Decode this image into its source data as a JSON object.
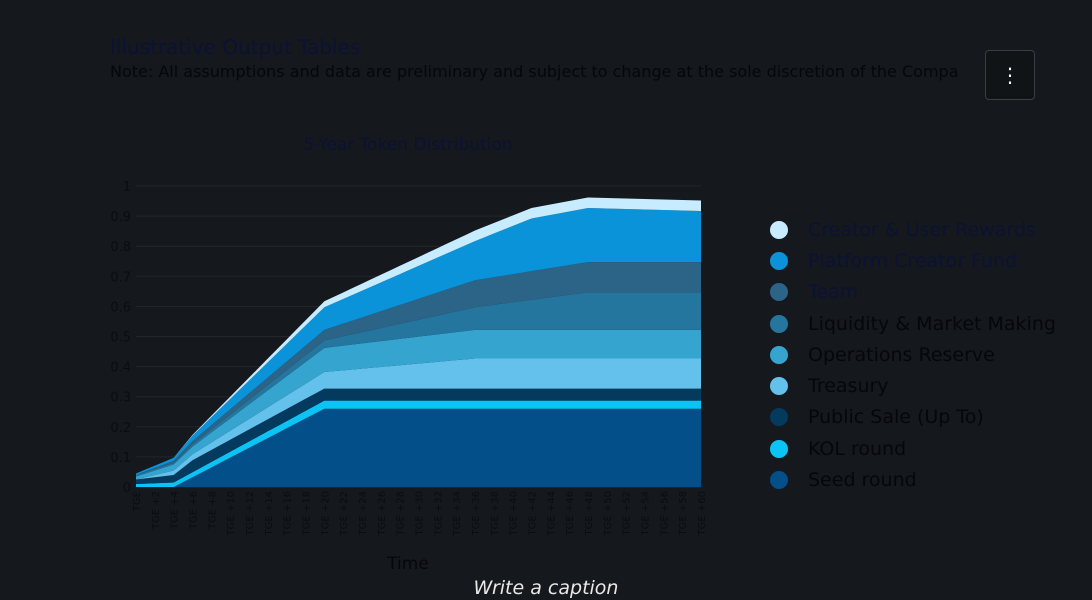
{
  "page": {
    "title": "Illustrative Output Tables",
    "note": "Note: All assumptions and data are preliminary and subject to change at the sole discretion of the Compa",
    "menu_icon": "more-vertical-icon",
    "caption": "Write a caption"
  },
  "colors": {
    "background": "#15181c",
    "axis_text": "#0b0d10",
    "gridline": "#23272c"
  },
  "chart_data": {
    "type": "area",
    "stacked": true,
    "title": "5-Year Token Distribution",
    "xlabel": "Time",
    "ylabel": "",
    "ylim": [
      0,
      1
    ],
    "yticks": [
      "0",
      "0.1",
      "0.2",
      "0.3",
      "0.4",
      "0.5",
      "0.6",
      "0.7",
      "0.8",
      "0.9",
      "1"
    ],
    "x": [
      "TGE",
      "TGE +1",
      "TGE +2",
      "TGE +3",
      "TGE +4",
      "TGE +5",
      "TGE +6",
      "TGE +7",
      "TGE +8",
      "TGE +9",
      "TGE +10",
      "TGE +11",
      "TGE +12",
      "TGE +13",
      "TGE +14",
      "TGE +15",
      "TGE +16",
      "TGE +17",
      "TGE +18",
      "TGE +19",
      "TGE +20",
      "TGE +21",
      "TGE +22",
      "TGE +23",
      "TGE +24",
      "TGE +25",
      "TGE +26",
      "TGE +27",
      "TGE +28",
      "TGE +29",
      "TGE +30",
      "TGE +31",
      "TGE +32",
      "TGE +33",
      "TGE +34",
      "TGE +35",
      "TGE +36",
      "TGE +37",
      "TGE +38",
      "TGE +39",
      "TGE +40",
      "TGE +41",
      "TGE +42",
      "TGE +43",
      "TGE +44",
      "TGE +45",
      "TGE +46",
      "TGE +47",
      "TGE +48",
      "TGE +49",
      "TGE +50",
      "TGE +51",
      "TGE +52",
      "TGE +53",
      "TGE +54",
      "TGE +55",
      "TGE +56",
      "TGE +57",
      "TGE +58",
      "TGE +59",
      "TGE +60"
    ],
    "xtick_labels": [
      "TGE",
      "TGE +2",
      "TGE +4",
      "TGE +6",
      "TGE +8",
      "TGE +10",
      "TGE +12",
      "TGE +14",
      "TGE +16",
      "TGE +18",
      "TGE +20",
      "TGE +22",
      "TGE +24",
      "TGE +26",
      "TGE +28",
      "TGE +30",
      "TGE +32",
      "TGE +34",
      "TGE +36",
      "TGE +38",
      "TGE +40",
      "TGE +42",
      "TGE +44",
      "TGE +46",
      "TGE +48",
      "TGE +50",
      "TGE +52",
      "TGE +54",
      "TGE +56",
      "TGE +58",
      "TGE +60"
    ],
    "grid": true,
    "legend_position": "right",
    "series": [
      {
        "name": "Seed round",
        "color": "#034f8a",
        "key_points": [
          [
            0,
            0
          ],
          [
            4,
            0
          ],
          [
            20,
            0.26
          ],
          [
            60,
            0.26
          ]
        ]
      },
      {
        "name": "KOL round",
        "color": "#0bc3f5",
        "key_points": [
          [
            0,
            0.01
          ],
          [
            4,
            0.015
          ],
          [
            20,
            0.027
          ],
          [
            60,
            0.027
          ]
        ]
      },
      {
        "name": "Public Sale (Up To)",
        "color": "#033a5e",
        "key_points": [
          [
            0,
            0.015
          ],
          [
            4,
            0.025
          ],
          [
            6,
            0.04
          ],
          [
            20,
            0.04
          ],
          [
            60,
            0.04
          ]
        ]
      },
      {
        "name": "Treasury",
        "color": "#63c1ec",
        "key_points": [
          [
            0,
            0
          ],
          [
            4,
            0.015
          ],
          [
            6,
            0.02
          ],
          [
            20,
            0.055
          ],
          [
            36,
            0.1
          ],
          [
            60,
            0.1
          ]
        ]
      },
      {
        "name": "Operations Reserve",
        "color": "#35a4cf",
        "key_points": [
          [
            0,
            0.01
          ],
          [
            4,
            0.02
          ],
          [
            6,
            0.025
          ],
          [
            20,
            0.08
          ],
          [
            36,
            0.095
          ],
          [
            60,
            0.095
          ]
        ]
      },
      {
        "name": "Liquidity & Market Making",
        "color": "#24769f",
        "key_points": [
          [
            0,
            0.005
          ],
          [
            4,
            0.005
          ],
          [
            6,
            0.008
          ],
          [
            20,
            0.025
          ],
          [
            36,
            0.075
          ],
          [
            48,
            0.125
          ],
          [
            60,
            0.125
          ]
        ]
      },
      {
        "name": "Team",
        "color": "#2b6486",
        "key_points": [
          [
            0,
            0
          ],
          [
            20,
            0.035
          ],
          [
            36,
            0.09
          ],
          [
            48,
            0.1
          ],
          [
            60,
            0.1
          ]
        ]
      },
      {
        "name": "Platform Creator Fund",
        "color": "#0a93d8",
        "key_points": [
          [
            0,
            0.005
          ],
          [
            4,
            0.01
          ],
          [
            20,
            0.075
          ],
          [
            36,
            0.13
          ],
          [
            42,
            0.175
          ],
          [
            48,
            0.18
          ],
          [
            60,
            0.17
          ]
        ]
      },
      {
        "name": "Creator & User Rewards",
        "color": "#c7ecff",
        "key_points": [
          [
            0,
            0
          ],
          [
            4,
            0
          ],
          [
            20,
            0.02
          ],
          [
            36,
            0.035
          ],
          [
            42,
            0.035
          ],
          [
            48,
            0.035
          ],
          [
            60,
            0.035
          ]
        ]
      }
    ]
  }
}
